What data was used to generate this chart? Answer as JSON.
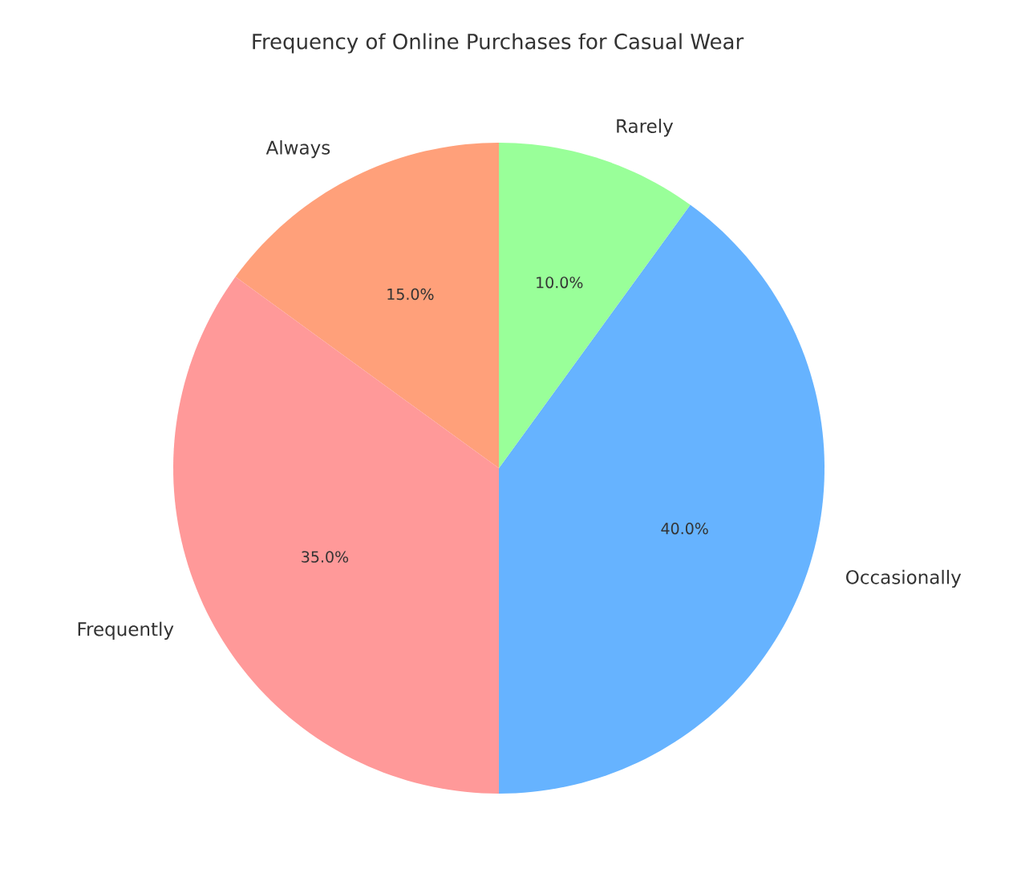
{
  "chart_data": {
    "type": "pie",
    "title": "Frequency of Online Purchases for Casual Wear",
    "categories": [
      "Always",
      "Frequently",
      "Occasionally",
      "Rarely"
    ],
    "values": [
      15,
      35,
      40,
      10
    ],
    "colors": [
      "#ffa07a",
      "#ff9999",
      "#66b3ff",
      "#99ff99"
    ],
    "value_labels": [
      "15.0%",
      "35.0%",
      "40.0%",
      "10.0%"
    ]
  }
}
